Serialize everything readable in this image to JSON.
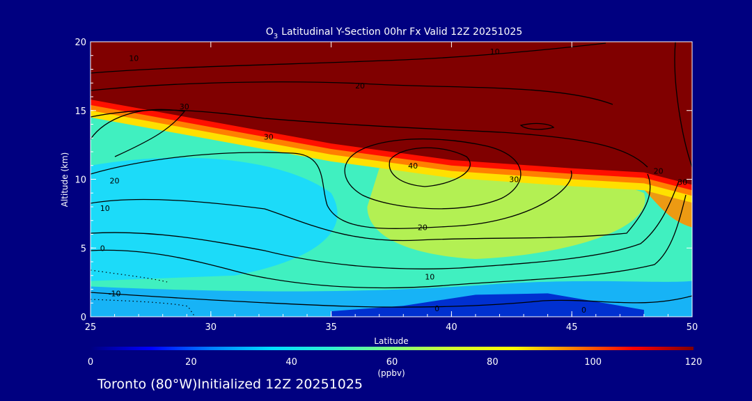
{
  "chart_data": {
    "type": "heatmap",
    "title": "Latitudinal Y-Section 00hr  Fx Valid 12Z 20251025",
    "title_species": "O",
    "title_species_sub": "3",
    "xlabel": "Latitude",
    "ylabel": "Altitude (km)",
    "xlim": [
      25,
      50
    ],
    "ylim": [
      0,
      20
    ],
    "xticks": [
      25,
      30,
      35,
      40,
      45,
      50
    ],
    "yticks": [
      0,
      5,
      10,
      15,
      20
    ],
    "grid": false,
    "colorbar": {
      "range": [
        0,
        120
      ],
      "ticks": [
        0,
        20,
        40,
        60,
        80,
        100,
        120
      ],
      "label": "(ppbv)",
      "colormap": "jet",
      "colors": [
        "#000080",
        "#0000ff",
        "#0080ff",
        "#00e0ff",
        "#30f0d0",
        "#80ff80",
        "#d0ff30",
        "#ffff00",
        "#ff8000",
        "#ff0000",
        "#800000"
      ]
    },
    "tropopause_km": {
      "lat": [
        25,
        30,
        35,
        40,
        45,
        48,
        50
      ],
      "alt": [
        15.8,
        14.2,
        12.6,
        11.4,
        10.8,
        10.5,
        9.6
      ]
    },
    "surface_low_o3": {
      "lat": [
        35,
        38,
        41,
        44,
        46,
        48
      ],
      "alt": [
        0.4,
        0.8,
        1.6,
        1.7,
        1.1,
        0.5
      ]
    },
    "contour_labels": [
      {
        "text": "10",
        "lat": 26.8,
        "alt": 18.8
      },
      {
        "text": "10",
        "lat": 41.8,
        "alt": 19.3
      },
      {
        "text": "20",
        "lat": 36.2,
        "alt": 16.8
      },
      {
        "text": "30",
        "lat": 28.9,
        "alt": 15.3
      },
      {
        "text": "30",
        "lat": 32.4,
        "alt": 13.1
      },
      {
        "text": "40",
        "lat": 38.4,
        "alt": 11.0
      },
      {
        "text": "30",
        "lat": 42.6,
        "alt": 10.0
      },
      {
        "text": "20",
        "lat": 26.0,
        "alt": 9.9
      },
      {
        "text": "20",
        "lat": 48.6,
        "alt": 10.6
      },
      {
        "text": "20",
        "lat": 38.8,
        "alt": 6.5
      },
      {
        "text": "10",
        "lat": 25.6,
        "alt": 7.9
      },
      {
        "text": "10",
        "lat": 39.1,
        "alt": 2.9
      },
      {
        "text": "0",
        "lat": 25.5,
        "alt": 5.0
      },
      {
        "text": "-10",
        "lat": 26.0,
        "alt": 1.7
      },
      {
        "text": "0",
        "lat": 39.4,
        "alt": 0.6
      },
      {
        "text": "0",
        "lat": 45.5,
        "alt": 0.5
      },
      {
        "text": "30",
        "lat": 49.6,
        "alt": 9.8
      }
    ]
  },
  "footer": {
    "location": "Toronto (80°W)",
    "initialized": "Initialized 12Z 20251025"
  }
}
